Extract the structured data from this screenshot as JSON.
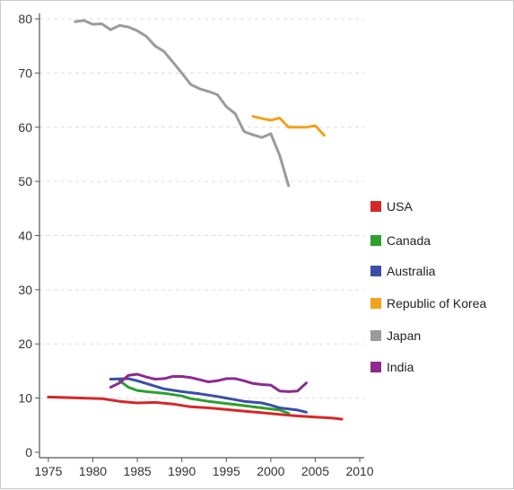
{
  "chart_data": {
    "type": "line",
    "title": "",
    "xlabel": "",
    "ylabel": "",
    "xlim": [
      1974,
      2010.5
    ],
    "ylim": [
      -1,
      81
    ],
    "x_ticks": [
      1975,
      1980,
      1985,
      1990,
      1995,
      2000,
      2005,
      2010
    ],
    "y_ticks": [
      0,
      10,
      20,
      30,
      40,
      50,
      60,
      70,
      80
    ],
    "grid": "horizontal dashed",
    "legend_position": "right",
    "series": [
      {
        "name": "USA",
        "color": "#d62728",
        "points": [
          [
            1975,
            10.2
          ],
          [
            1977,
            10.1
          ],
          [
            1979,
            10.0
          ],
          [
            1981,
            9.9
          ],
          [
            1983,
            9.4
          ],
          [
            1985,
            9.1
          ],
          [
            1987,
            9.2
          ],
          [
            1989,
            8.9
          ],
          [
            1991,
            8.4
          ],
          [
            1993,
            8.2
          ],
          [
            1995,
            7.9
          ],
          [
            1997,
            7.6
          ],
          [
            1999,
            7.3
          ],
          [
            2001,
            7.0
          ],
          [
            2003,
            6.7
          ],
          [
            2005,
            6.5
          ],
          [
            2007,
            6.3
          ],
          [
            2008,
            6.1
          ]
        ]
      },
      {
        "name": "Canada",
        "color": "#2ca02c",
        "points": [
          [
            1983,
            13.2
          ],
          [
            1984,
            12.0
          ],
          [
            1985,
            11.4
          ],
          [
            1986,
            11.2
          ],
          [
            1988,
            10.9
          ],
          [
            1990,
            10.4
          ],
          [
            1991,
            9.9
          ],
          [
            1993,
            9.4
          ],
          [
            1995,
            9.0
          ],
          [
            1997,
            8.6
          ],
          [
            1999,
            8.2
          ],
          [
            2001,
            7.8
          ],
          [
            2002,
            7.2
          ]
        ]
      },
      {
        "name": "Australia",
        "color": "#3a4ea6",
        "points": [
          [
            1982,
            13.5
          ],
          [
            1984,
            13.6
          ],
          [
            1985,
            13.2
          ],
          [
            1986,
            12.7
          ],
          [
            1988,
            11.7
          ],
          [
            1990,
            11.2
          ],
          [
            1992,
            10.8
          ],
          [
            1994,
            10.3
          ],
          [
            1995,
            10.0
          ],
          [
            1997,
            9.4
          ],
          [
            1999,
            9.1
          ],
          [
            2000,
            8.7
          ],
          [
            2001,
            8.2
          ],
          [
            2003,
            7.8
          ],
          [
            2004,
            7.4
          ]
        ]
      },
      {
        "name": "Republic of Korea",
        "color": "#f0a21c",
        "points": [
          [
            1998,
            62.0
          ],
          [
            1999,
            61.6
          ],
          [
            2000,
            61.3
          ],
          [
            2001,
            61.7
          ],
          [
            2002,
            60.0
          ],
          [
            2003,
            60.0
          ],
          [
            2004,
            60.0
          ],
          [
            2005,
            60.3
          ],
          [
            2006,
            58.5
          ]
        ]
      },
      {
        "name": "Japan",
        "color": "#9b9b9b",
        "points": [
          [
            1978,
            79.5
          ],
          [
            1979,
            79.7
          ],
          [
            1980,
            79.0
          ],
          [
            1981,
            79.1
          ],
          [
            1982,
            78.0
          ],
          [
            1983,
            78.8
          ],
          [
            1984,
            78.5
          ],
          [
            1985,
            77.8
          ],
          [
            1986,
            76.8
          ],
          [
            1987,
            75.0
          ],
          [
            1988,
            74.0
          ],
          [
            1989,
            72.0
          ],
          [
            1990,
            70.0
          ],
          [
            1991,
            67.9
          ],
          [
            1992,
            67.1
          ],
          [
            1993,
            66.6
          ],
          [
            1994,
            66.0
          ],
          [
            1995,
            63.8
          ],
          [
            1996,
            62.5
          ],
          [
            1997,
            59.2
          ],
          [
            1998,
            58.6
          ],
          [
            1999,
            58.1
          ],
          [
            2000,
            58.8
          ],
          [
            2001,
            54.8
          ],
          [
            2002,
            49.2
          ]
        ]
      },
      {
        "name": "India",
        "color": "#8e2a8e",
        "points": [
          [
            1982,
            12.0
          ],
          [
            1983,
            12.8
          ],
          [
            1984,
            14.2
          ],
          [
            1985,
            14.4
          ],
          [
            1986,
            13.9
          ],
          [
            1987,
            13.5
          ],
          [
            1988,
            13.6
          ],
          [
            1989,
            14.0
          ],
          [
            1990,
            14.0
          ],
          [
            1991,
            13.8
          ],
          [
            1992,
            13.4
          ],
          [
            1993,
            13.0
          ],
          [
            1994,
            13.2
          ],
          [
            1995,
            13.6
          ],
          [
            1996,
            13.6
          ],
          [
            1997,
            13.2
          ],
          [
            1998,
            12.7
          ],
          [
            1999,
            12.5
          ],
          [
            2000,
            12.4
          ],
          [
            2001,
            11.3
          ],
          [
            2002,
            11.2
          ],
          [
            2003,
            11.3
          ],
          [
            2004,
            12.8
          ]
        ]
      }
    ]
  }
}
